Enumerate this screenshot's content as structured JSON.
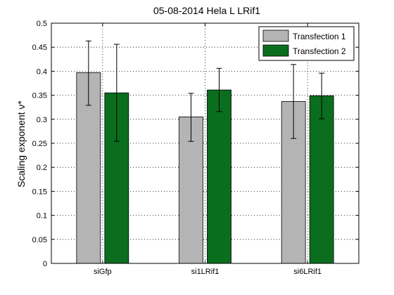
{
  "chart_data": {
    "type": "bar",
    "title": "05-08-2014 Hela L LRif1",
    "xlabel": "",
    "ylabel": "Scaling exponent ν*",
    "ylim": [
      0,
      0.5
    ],
    "yticks": [
      0,
      0.05,
      0.1,
      0.15,
      0.2,
      0.25,
      0.3,
      0.35,
      0.4,
      0.45,
      0.5
    ],
    "ytick_labels": [
      "0",
      "0.05",
      "0.1",
      "0.15",
      "0.2",
      "0.25",
      "0.3",
      "0.35",
      "0.4",
      "0.45",
      "0.5"
    ],
    "categories": [
      "siGfp",
      "si1LRif1",
      "si6LRif1"
    ],
    "grid": "dotted",
    "legend_position": "top-right",
    "series": [
      {
        "name": "Transfection 1",
        "color": "#b4b4b4",
        "values": [
          0.397,
          0.305,
          0.337
        ],
        "error_low": [
          0.329,
          0.254,
          0.26
        ],
        "error_high": [
          0.463,
          0.354,
          0.414
        ]
      },
      {
        "name": "Transfection 2",
        "color": "#0a6e1e",
        "values": [
          0.355,
          0.361,
          0.349
        ],
        "error_low": [
          0.254,
          0.316,
          0.301
        ],
        "error_high": [
          0.456,
          0.406,
          0.396
        ]
      }
    ]
  }
}
